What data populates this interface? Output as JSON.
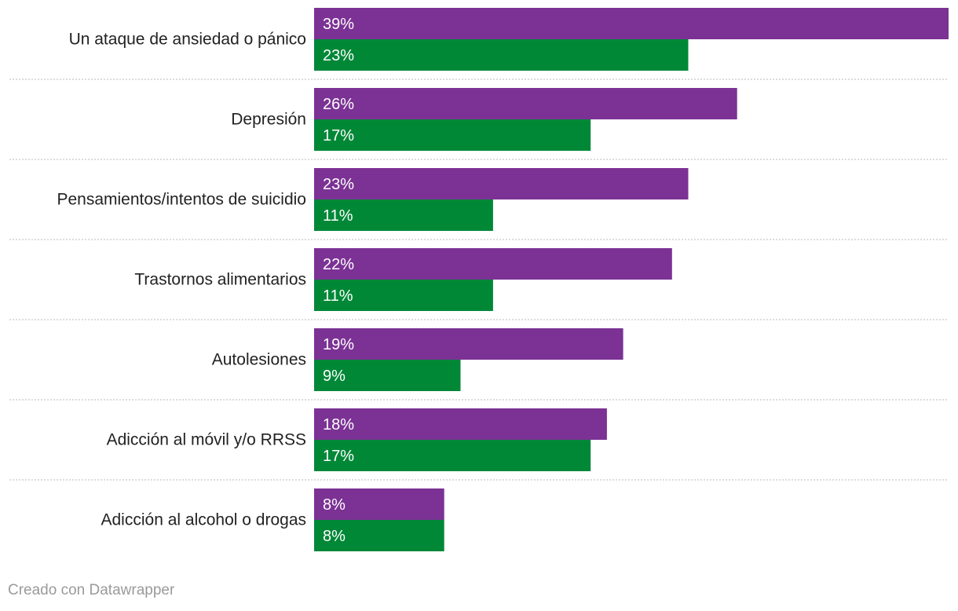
{
  "chart_data": {
    "type": "bar",
    "orientation": "horizontal",
    "categories": [
      "Un ataque de ansiedad o pánico",
      "Depresión",
      "Pensamientos/intentos de suicidio",
      "Trastornos alimentarios",
      "Autolesiones",
      "Adicción al móvil y/o RRSS",
      "Adicción al alcohol o drogas"
    ],
    "series": [
      {
        "color": "#7b3294",
        "values": [
          39,
          26,
          23,
          22,
          19,
          18,
          8
        ],
        "labels": [
          "39%",
          "26%",
          "23%",
          "22%",
          "19%",
          "18%",
          "8%"
        ]
      },
      {
        "color": "#008837",
        "values": [
          23,
          17,
          11,
          11,
          9,
          17,
          8
        ],
        "labels": [
          "23%",
          "17%",
          "11%",
          "11%",
          "9%",
          "17%",
          "8%"
        ]
      }
    ],
    "xlim": [
      0,
      39
    ],
    "unit": "%",
    "grid": false,
    "legend": "none"
  },
  "footer": {
    "credit": "Creado con Datawrapper"
  }
}
